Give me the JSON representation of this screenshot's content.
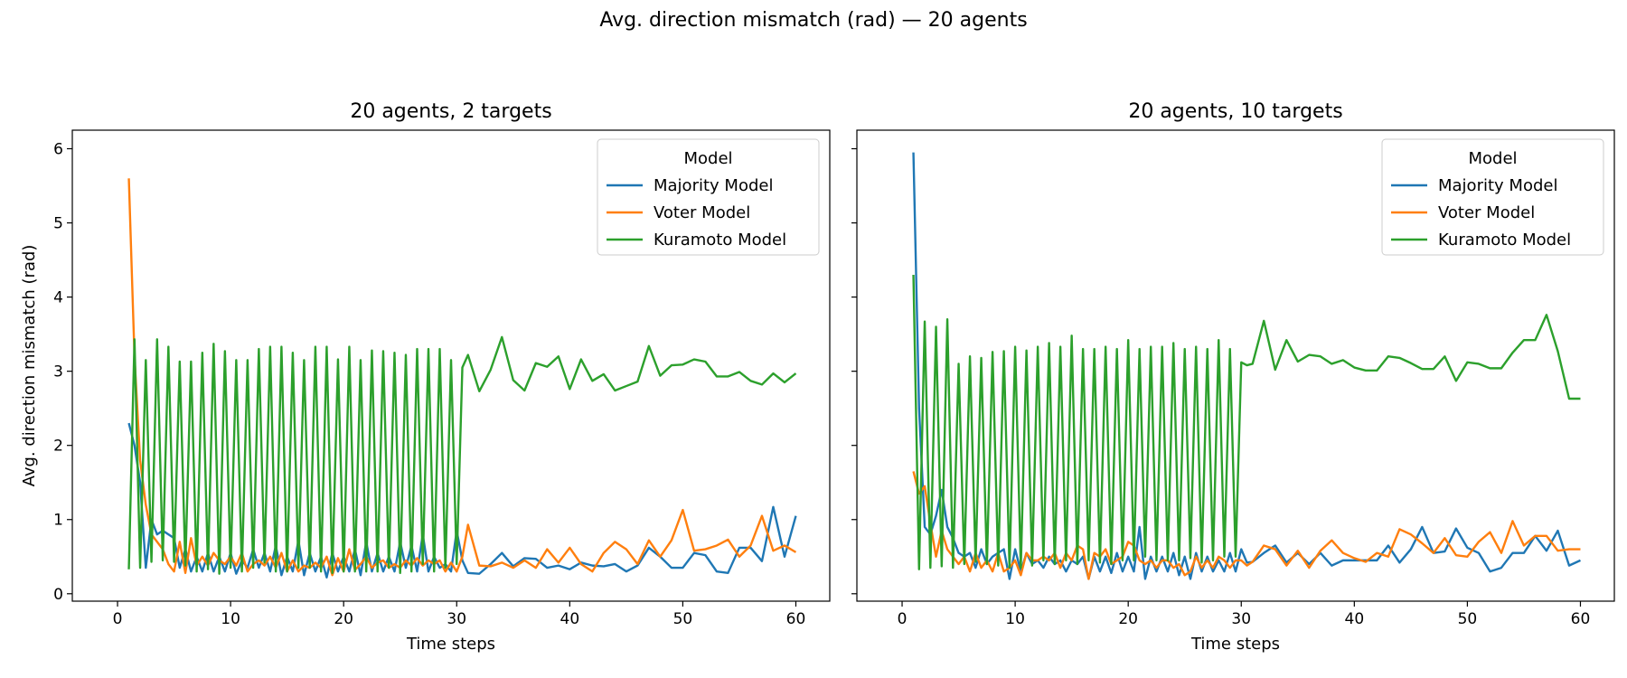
{
  "figure": {
    "suptitle": "Avg. direction mismatch (rad) — 20 agents"
  },
  "colors": {
    "Majority Model": "#1f77b4",
    "Voter Model": "#ff7f0e",
    "Kuramoto Model": "#2ca02c"
  },
  "chart_data": [
    {
      "type": "line",
      "title": "20 agents, 2 targets",
      "xlabel": "Time steps",
      "ylabel": "Avg. direction mismatch (rad)",
      "xlim": [
        -4,
        63
      ],
      "ylim": [
        -0.1,
        6.25
      ],
      "xticks": [
        0,
        10,
        20,
        30,
        40,
        50,
        60
      ],
      "yticks": [
        0,
        1,
        2,
        3,
        4,
        5,
        6
      ],
      "grid": false,
      "legend": {
        "title": "Model",
        "placement": "top-right"
      },
      "x": [
        1,
        1.5,
        2,
        2.5,
        3,
        3.5,
        4,
        4.5,
        5,
        5.5,
        6,
        6.5,
        7,
        7.5,
        8,
        8.5,
        9,
        9.5,
        10,
        10.5,
        11,
        11.5,
        12,
        12.5,
        13,
        13.5,
        14,
        14.5,
        15,
        15.5,
        16,
        16.5,
        17,
        17.5,
        18,
        18.5,
        19,
        19.5,
        20,
        20.5,
        21,
        21.5,
        22,
        22.5,
        23,
        23.5,
        24,
        24.5,
        25,
        25.5,
        26,
        26.5,
        27,
        27.5,
        28,
        28.5,
        29,
        29.5,
        30,
        30.5,
        31,
        32,
        33,
        34,
        35,
        36,
        37,
        38,
        39,
        40,
        41,
        42,
        43,
        44,
        45,
        46,
        47,
        48,
        49,
        50,
        51,
        52,
        53,
        54,
        55,
        56,
        57,
        58,
        59,
        60
      ],
      "series": [
        {
          "name": "Majority Model",
          "values": [
            2.3,
            2.0,
            1.5,
            0.35,
            1.0,
            0.8,
            0.85,
            0.8,
            0.75,
            0.35,
            0.6,
            0.3,
            0.5,
            0.3,
            0.55,
            0.3,
            0.5,
            0.3,
            0.55,
            0.27,
            0.45,
            0.35,
            0.6,
            0.35,
            0.55,
            0.3,
            0.65,
            0.25,
            0.5,
            0.3,
            0.72,
            0.25,
            0.55,
            0.3,
            0.5,
            0.22,
            0.55,
            0.3,
            0.5,
            0.3,
            0.6,
            0.25,
            0.7,
            0.3,
            0.55,
            0.3,
            0.5,
            0.3,
            0.7,
            0.35,
            0.65,
            0.3,
            0.8,
            0.3,
            0.5,
            0.35,
            0.4,
            0.3,
            0.85,
            0.45,
            0.28,
            0.27,
            0.4,
            0.55,
            0.37,
            0.48,
            0.47,
            0.35,
            0.38,
            0.33,
            0.42,
            0.38,
            0.37,
            0.4,
            0.3,
            0.38,
            0.62,
            0.5,
            0.35,
            0.35,
            0.55,
            0.52,
            0.3,
            0.28,
            0.62,
            0.62,
            0.44,
            1.17,
            0.5,
            1.05
          ]
        },
        {
          "name": "Voter Model",
          "values": [
            5.6,
            3.2,
            1.8,
            1.2,
            0.8,
            0.7,
            0.6,
            0.4,
            0.3,
            0.7,
            0.28,
            0.75,
            0.38,
            0.5,
            0.38,
            0.55,
            0.45,
            0.4,
            0.5,
            0.38,
            0.55,
            0.3,
            0.4,
            0.45,
            0.38,
            0.5,
            0.35,
            0.55,
            0.3,
            0.45,
            0.3,
            0.38,
            0.35,
            0.42,
            0.35,
            0.5,
            0.25,
            0.48,
            0.3,
            0.6,
            0.32,
            0.4,
            0.5,
            0.35,
            0.42,
            0.45,
            0.35,
            0.4,
            0.35,
            0.45,
            0.38,
            0.48,
            0.38,
            0.45,
            0.4,
            0.45,
            0.3,
            0.42,
            0.3,
            0.5,
            0.93,
            0.38,
            0.37,
            0.42,
            0.35,
            0.45,
            0.35,
            0.6,
            0.42,
            0.62,
            0.4,
            0.3,
            0.55,
            0.7,
            0.6,
            0.4,
            0.72,
            0.5,
            0.72,
            1.13,
            0.58,
            0.6,
            0.65,
            0.73,
            0.5,
            0.65,
            1.05,
            0.58,
            0.65,
            0.56
          ]
        },
        {
          "name": "Kuramoto Model",
          "values": [
            0.33,
            3.43,
            0.35,
            3.15,
            0.43,
            3.43,
            0.45,
            3.33,
            0.43,
            3.13,
            0.38,
            3.13,
            0.3,
            3.25,
            0.33,
            3.37,
            0.27,
            3.27,
            0.35,
            3.15,
            0.3,
            3.15,
            0.35,
            3.3,
            0.42,
            3.33,
            0.3,
            3.33,
            0.3,
            3.25,
            0.35,
            3.15,
            0.35,
            3.33,
            0.3,
            3.33,
            0.28,
            3.16,
            0.3,
            3.33,
            0.3,
            3.15,
            0.3,
            3.28,
            0.3,
            3.27,
            0.35,
            3.25,
            0.28,
            3.22,
            0.3,
            3.3,
            0.4,
            3.3,
            0.3,
            3.3,
            0.35,
            3.15,
            0.4,
            3.05,
            3.22,
            2.73,
            3.02,
            3.46,
            2.88,
            2.74,
            3.11,
            3.06,
            3.2,
            2.76,
            3.16,
            2.87,
            2.96,
            2.74,
            2.8,
            2.86,
            3.34,
            2.94,
            3.08,
            3.09,
            3.16,
            3.13,
            2.93,
            2.93,
            2.99,
            2.87,
            2.82,
            2.97,
            2.85,
            2.97
          ]
        }
      ]
    },
    {
      "type": "line",
      "title": "20 agents, 10 targets",
      "xlabel": "Time steps",
      "ylabel": "",
      "xlim": [
        -4,
        63
      ],
      "ylim": [
        -0.1,
        6.25
      ],
      "xticks": [
        0,
        10,
        20,
        30,
        40,
        50,
        60
      ],
      "yticks": [
        0,
        1,
        2,
        3,
        4,
        5,
        6
      ],
      "grid": false,
      "legend": {
        "title": "Model",
        "placement": "top-right"
      },
      "x": [
        1,
        1.5,
        2,
        2.5,
        3,
        3.5,
        4,
        4.5,
        5,
        5.5,
        6,
        6.5,
        7,
        7.5,
        8,
        8.5,
        9,
        9.5,
        10,
        10.5,
        11,
        11.5,
        12,
        12.5,
        13,
        13.5,
        14,
        14.5,
        15,
        15.5,
        16,
        16.5,
        17,
        17.5,
        18,
        18.5,
        19,
        19.5,
        20,
        20.5,
        21,
        21.5,
        22,
        22.5,
        23,
        23.5,
        24,
        24.5,
        25,
        25.5,
        26,
        26.5,
        27,
        27.5,
        28,
        28.5,
        29,
        29.5,
        30,
        30.5,
        31,
        32,
        33,
        34,
        35,
        36,
        37,
        38,
        39,
        40,
        41,
        42,
        43,
        44,
        45,
        46,
        47,
        48,
        49,
        50,
        51,
        52,
        53,
        54,
        55,
        56,
        57,
        58,
        59,
        60
      ],
      "series": [
        {
          "name": "Majority Model",
          "values": [
            5.95,
            2.5,
            0.9,
            0.8,
            1.05,
            1.4,
            0.9,
            0.75,
            0.55,
            0.5,
            0.55,
            0.35,
            0.6,
            0.4,
            0.5,
            0.55,
            0.6,
            0.2,
            0.6,
            0.3,
            0.55,
            0.4,
            0.45,
            0.35,
            0.5,
            0.4,
            0.45,
            0.3,
            0.45,
            0.4,
            0.5,
            0.2,
            0.5,
            0.3,
            0.5,
            0.28,
            0.55,
            0.3,
            0.5,
            0.3,
            0.9,
            0.2,
            0.5,
            0.3,
            0.5,
            0.3,
            0.55,
            0.25,
            0.5,
            0.2,
            0.55,
            0.3,
            0.5,
            0.3,
            0.45,
            0.3,
            0.55,
            0.3,
            0.6,
            0.42,
            0.43,
            0.55,
            0.65,
            0.42,
            0.55,
            0.4,
            0.55,
            0.38,
            0.45,
            0.45,
            0.45,
            0.45,
            0.65,
            0.42,
            0.6,
            0.9,
            0.55,
            0.57,
            0.88,
            0.62,
            0.55,
            0.3,
            0.35,
            0.55,
            0.55,
            0.78,
            0.58,
            0.85,
            0.38,
            0.45
          ]
        },
        {
          "name": "Voter Model",
          "values": [
            1.65,
            1.35,
            1.45,
            0.95,
            0.5,
            0.85,
            0.6,
            0.5,
            0.4,
            0.5,
            0.3,
            0.55,
            0.35,
            0.45,
            0.3,
            0.55,
            0.3,
            0.35,
            0.45,
            0.25,
            0.55,
            0.45,
            0.45,
            0.5,
            0.45,
            0.55,
            0.35,
            0.55,
            0.45,
            0.65,
            0.6,
            0.2,
            0.55,
            0.5,
            0.6,
            0.4,
            0.45,
            0.5,
            0.7,
            0.65,
            0.45,
            0.4,
            0.45,
            0.35,
            0.45,
            0.45,
            0.35,
            0.4,
            0.25,
            0.3,
            0.5,
            0.35,
            0.45,
            0.35,
            0.5,
            0.45,
            0.35,
            0.45,
            0.45,
            0.38,
            0.43,
            0.65,
            0.6,
            0.38,
            0.58,
            0.35,
            0.58,
            0.72,
            0.55,
            0.48,
            0.43,
            0.55,
            0.5,
            0.87,
            0.8,
            0.68,
            0.55,
            0.75,
            0.52,
            0.5,
            0.7,
            0.83,
            0.55,
            0.98,
            0.65,
            0.78,
            0.78,
            0.58,
            0.6,
            0.6
          ]
        },
        {
          "name": "Kuramoto Model",
          "values": [
            4.3,
            0.33,
            3.67,
            0.35,
            3.6,
            0.37,
            3.7,
            0.35,
            3.1,
            0.4,
            3.2,
            0.43,
            3.18,
            0.4,
            3.26,
            0.38,
            3.27,
            0.35,
            3.33,
            0.35,
            3.28,
            0.38,
            3.33,
            0.45,
            3.38,
            0.4,
            3.33,
            0.45,
            3.48,
            0.4,
            3.3,
            0.45,
            3.3,
            0.42,
            3.33,
            0.4,
            3.3,
            0.45,
            3.42,
            0.45,
            3.3,
            0.5,
            3.33,
            0.45,
            3.33,
            0.45,
            3.38,
            0.45,
            3.3,
            0.48,
            3.33,
            0.42,
            3.3,
            0.45,
            3.42,
            0.5,
            3.3,
            0.5,
            3.12,
            3.08,
            3.1,
            3.68,
            3.02,
            3.42,
            3.13,
            3.22,
            3.2,
            3.1,
            3.15,
            3.05,
            3.01,
            3.01,
            3.2,
            3.18,
            3.11,
            3.03,
            3.03,
            3.2,
            2.87,
            3.12,
            3.1,
            3.04,
            3.04,
            3.25,
            3.42,
            3.42,
            3.76,
            3.27,
            2.63,
            2.63
          ]
        }
      ]
    }
  ]
}
